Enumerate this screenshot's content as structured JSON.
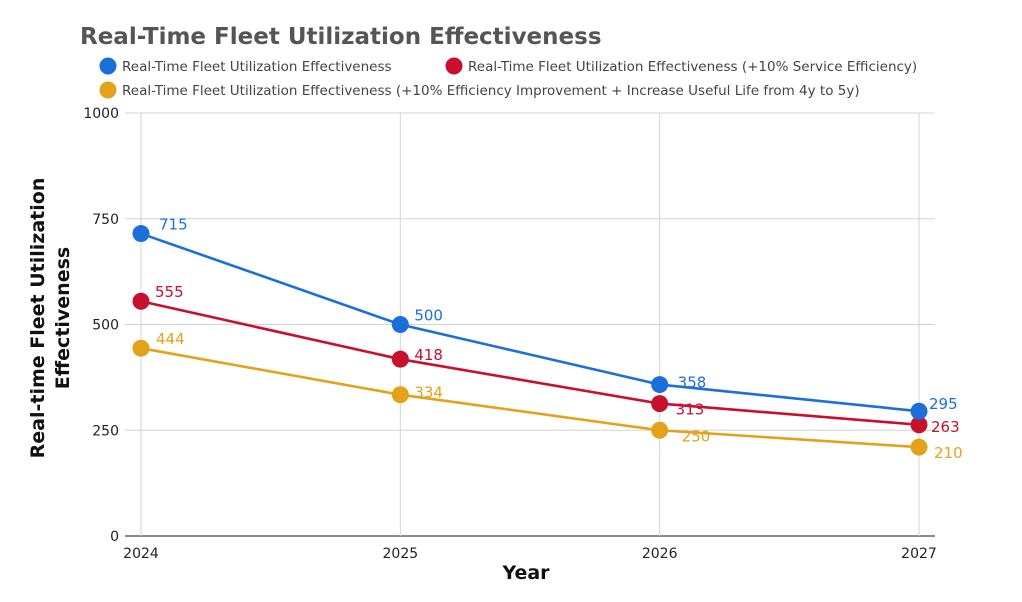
{
  "chart_data": {
    "type": "line",
    "title": "Real-Time Fleet Utilization Effectiveness",
    "xlabel": "Year",
    "ylabel": "Real-time Fleet Utilization Effectiveness",
    "x": [
      "2024",
      "2025",
      "2026",
      "2027"
    ],
    "ylim": [
      0,
      1000
    ],
    "yticks": [
      0,
      250,
      500,
      750,
      1000
    ],
    "grid": true,
    "legend_position": "top",
    "series": [
      {
        "name": "Real-Time Fleet Utilization Effectiveness",
        "color": "#1a6fdb",
        "values": [
          715,
          500,
          358,
          295
        ]
      },
      {
        "name": "Real-Time Fleet Utilization Effectiveness (+10% Service Efficiency)",
        "color": "#c8102e",
        "values": [
          555,
          418,
          313,
          263
        ]
      },
      {
        "name": "Real-Time Fleet Utilization Effectiveness (+10% Efficiency Improvement + Increase Useful Life from 4y to 5y)",
        "color": "#e3a21a",
        "values": [
          444,
          334,
          250,
          210
        ]
      }
    ]
  }
}
